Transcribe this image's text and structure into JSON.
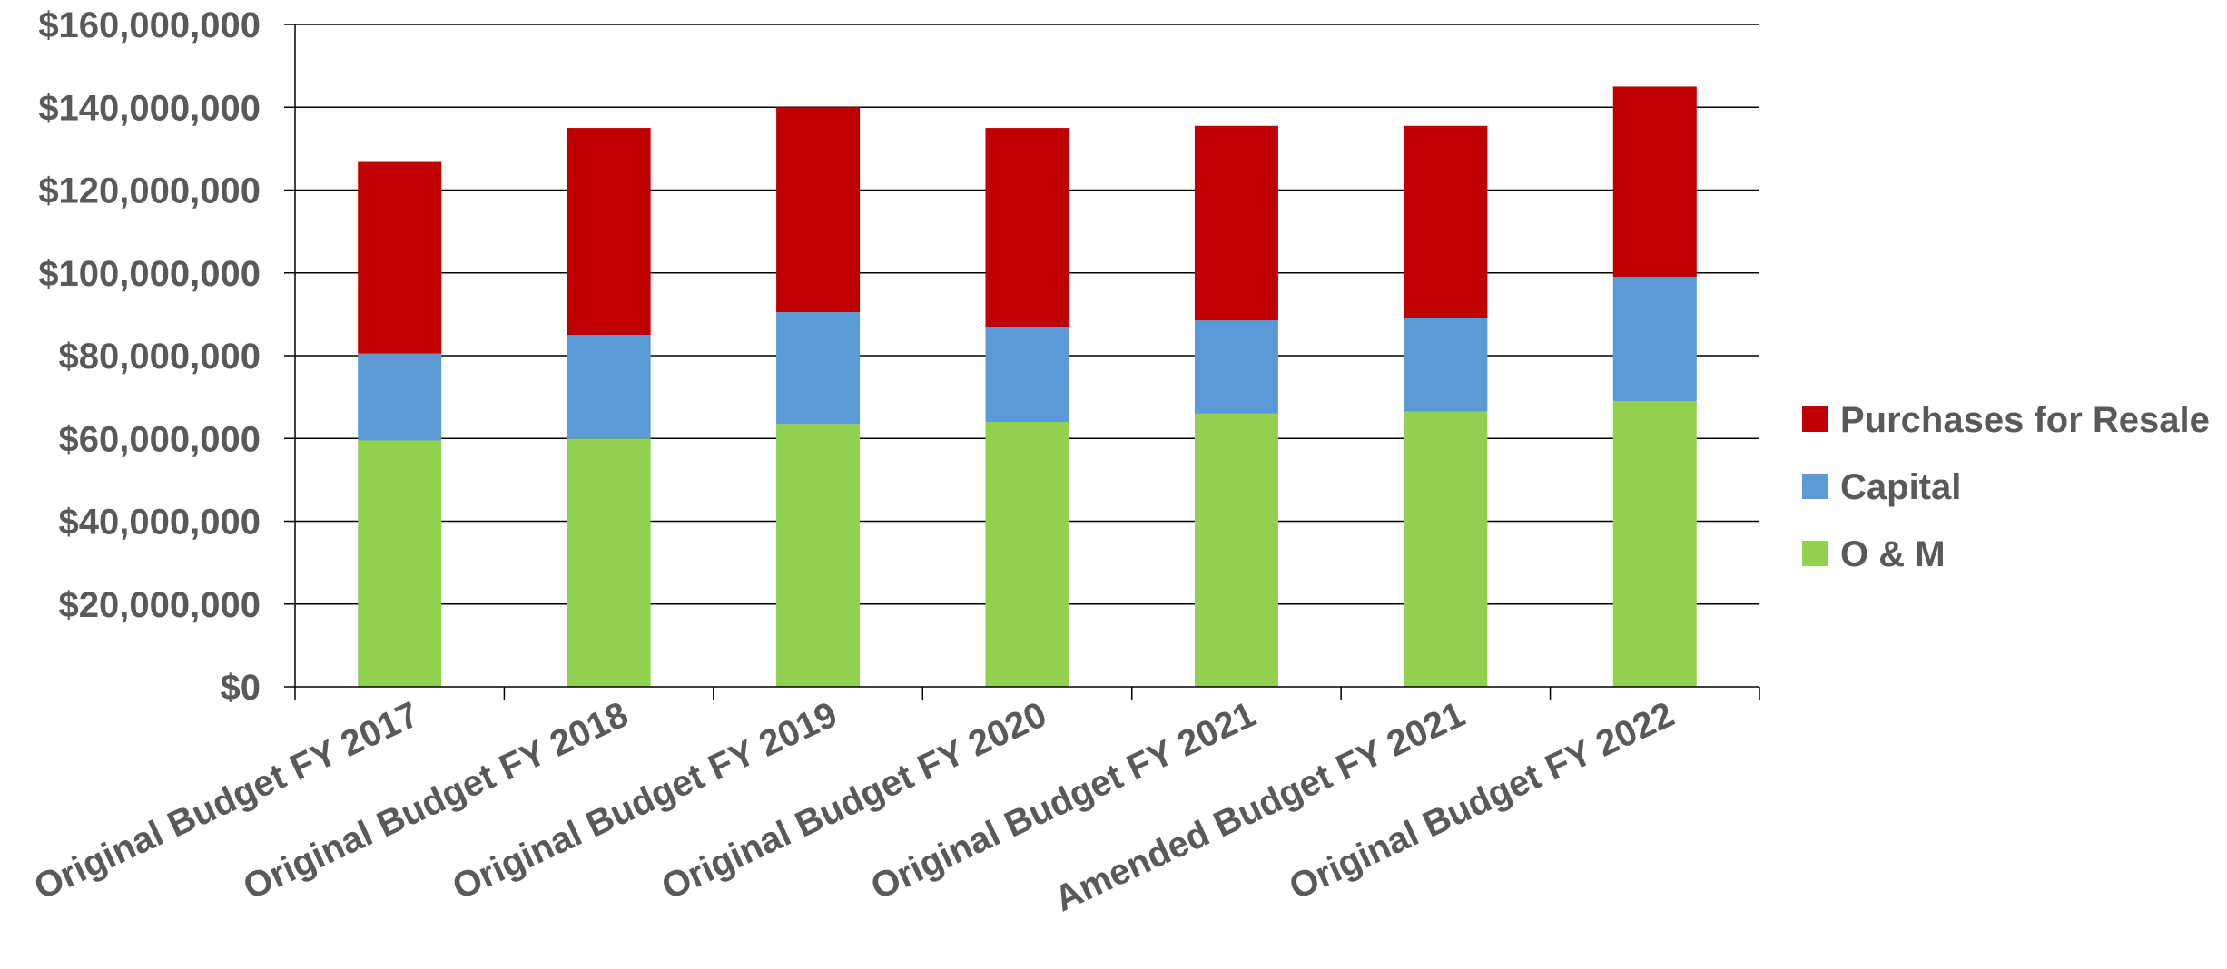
{
  "chart_data": {
    "type": "bar",
    "stacked": true,
    "categories": [
      "Original Budget FY 2017",
      "Original Budget FY 2018",
      "Original Budget FY 2019",
      "Original Budget FY 2020",
      "Original Budget FY 2021",
      "Amended Budget FY 2021",
      "Original Budget FY 2022"
    ],
    "series": [
      {
        "name": "O & M",
        "color": "#92d050",
        "values": [
          59500000,
          60000000,
          63500000,
          64000000,
          66000000,
          66500000,
          69000000
        ]
      },
      {
        "name": "Capital",
        "color": "#5b9bd5",
        "values": [
          21000000,
          25000000,
          27000000,
          23000000,
          22500000,
          22500000,
          30000000
        ]
      },
      {
        "name": "Purchases for Resale",
        "color": "#c00000",
        "values": [
          46500000,
          50000000,
          49500000,
          48000000,
          47000000,
          46500000,
          46000000
        ]
      }
    ],
    "ylim": [
      0,
      160000000
    ],
    "ytick_step": 20000000,
    "ytick_labels": [
      "$0",
      "$20,000,000",
      "$40,000,000",
      "$60,000,000",
      "$80,000,000",
      "$100,000,000",
      "$120,000,000",
      "$140,000,000",
      "$160,000,000"
    ],
    "legend_order": [
      "Purchases for Resale",
      "Capital",
      "O & M"
    ],
    "legend_position": "right",
    "grid": true,
    "title": "",
    "xlabel": "",
    "ylabel": ""
  }
}
